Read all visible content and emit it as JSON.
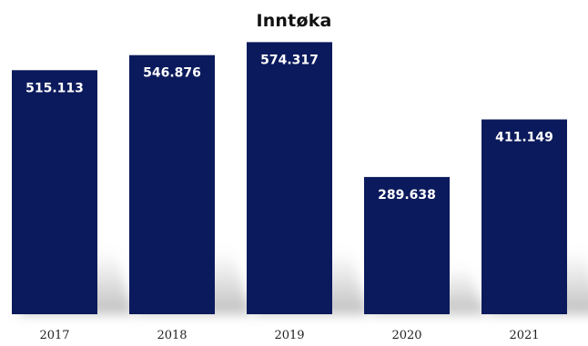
{
  "colors": {
    "bar": "#0b1a5c",
    "background": "#ffffff",
    "title": "#111111",
    "value_label": "#ffffff"
  },
  "chart_data": {
    "type": "bar",
    "title": "Inntøka",
    "xlabel": "",
    "ylabel": "",
    "categories": [
      "2017",
      "2018",
      "2019",
      "2020",
      "2021"
    ],
    "values": [
      515113,
      546876,
      574317,
      289638,
      411149
    ],
    "value_labels": [
      "515.113",
      "546.876",
      "574.317",
      "289.638",
      "411.149"
    ],
    "ylim": [
      0,
      600000
    ],
    "grid": false,
    "legend": "none"
  }
}
